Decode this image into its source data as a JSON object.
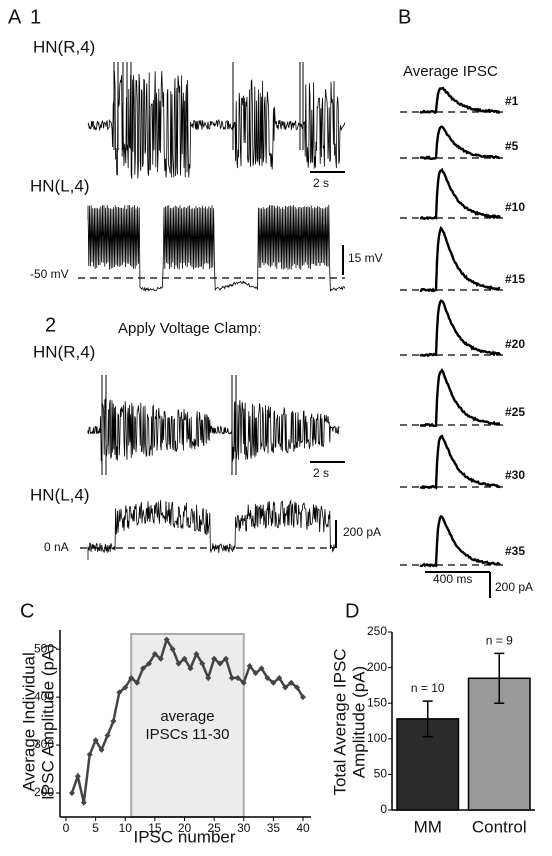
{
  "panel_a": {
    "label": "A",
    "sub1": "1",
    "r_label": "HN(R,4)",
    "time_bar": "2 s",
    "l_label": "HN(L,4)",
    "v_label": "-50 mV",
    "v_bar": "15 mV",
    "sub2": "2",
    "clamp_title": "Apply Voltage Clamp:",
    "r_label2": "HN(R,4)",
    "time_bar2": "2 s",
    "l_label2": "HN(L,4)",
    "i_label": "0 nA",
    "i_bar": "200 pA"
  },
  "panel_b": {
    "label": "B",
    "title": "Average IPSC",
    "traces": [
      "#1",
      "#5",
      "#10",
      "#15",
      "#20",
      "#25",
      "#30",
      "#35"
    ],
    "time_bar": "400 ms",
    "amp_bar": "200 pA"
  },
  "chart_data": [
    {
      "type": "line",
      "label": "C",
      "ylabel": [
        "Average  Individual",
        "IPSC Amplitude (pA)"
      ],
      "xlabel": "IPSC number",
      "x": [
        1,
        2,
        3,
        4,
        5,
        6,
        7,
        8,
        9,
        10,
        11,
        12,
        13,
        14,
        15,
        16,
        17,
        18,
        19,
        20,
        21,
        22,
        23,
        24,
        25,
        26,
        27,
        28,
        29,
        30,
        31,
        32,
        33,
        34,
        35,
        36,
        37,
        38,
        39,
        40
      ],
      "values": [
        200,
        235,
        180,
        280,
        310,
        290,
        320,
        350,
        410,
        420,
        440,
        430,
        460,
        470,
        490,
        480,
        520,
        500,
        470,
        480,
        460,
        490,
        470,
        440,
        480,
        470,
        480,
        440,
        440,
        430,
        465,
        450,
        460,
        440,
        430,
        440,
        420,
        430,
        420,
        400
      ],
      "color": "#444444",
      "xlim": [
        0,
        40
      ],
      "xticks": [
        0,
        5,
        10,
        15,
        20,
        25,
        30,
        35,
        40
      ],
      "ylim": [
        150,
        540
      ],
      "yticks": [
        200,
        300,
        400,
        500
      ],
      "shaded_region": [
        11,
        30
      ],
      "annotation": [
        "average",
        "IPSCs 11-30"
      ]
    },
    {
      "type": "bar",
      "label": "D",
      "ylabel": [
        "Total Average IPSC",
        "Amplitude (pA)"
      ],
      "categories": [
        "MM",
        "Control"
      ],
      "values": [
        128,
        185
      ],
      "errors": [
        25,
        35
      ],
      "annotations": [
        "n = 10",
        "n = 9"
      ],
      "colors": [
        "#2b2b2b",
        "#999999"
      ],
      "ylim": [
        0,
        250
      ],
      "yticks": [
        0,
        50,
        100,
        150,
        200,
        250
      ]
    }
  ]
}
